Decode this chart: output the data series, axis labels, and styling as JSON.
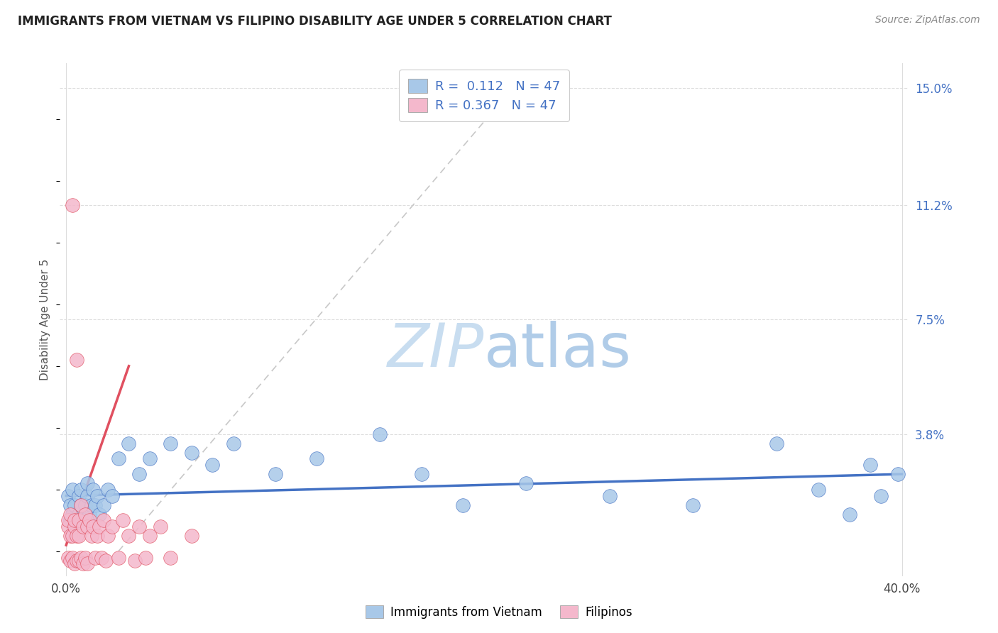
{
  "title": "IMMIGRANTS FROM VIETNAM VS FILIPINO DISABILITY AGE UNDER 5 CORRELATION CHART",
  "source": "Source: ZipAtlas.com",
  "ylabel": "Disability Age Under 5",
  "xlim": [
    -0.003,
    0.403
  ],
  "ylim": [
    -0.008,
    0.158
  ],
  "xtick_pos": [
    0.0,
    0.4
  ],
  "xtick_labels": [
    "0.0%",
    "40.0%"
  ],
  "ytick_pos": [
    0.15,
    0.112,
    0.075,
    0.038
  ],
  "ytick_labels": [
    "15.0%",
    "11.2%",
    "7.5%",
    "3.8%"
  ],
  "r_vietnam": 0.112,
  "n_vietnam": 47,
  "r_filipino": 0.367,
  "n_filipino": 47,
  "color_vietnam": "#A8C8E8",
  "color_filipino": "#F4B8CC",
  "line_color_vietnam": "#4472C4",
  "line_color_filipino": "#E05060",
  "diag_color": "#C8C8C8",
  "watermark_color": "#DCE9F5",
  "background_color": "#FFFFFF",
  "legend_label_vietnam": "Immigrants from Vietnam",
  "legend_label_filipino": "Filipinos",
  "ytick_color": "#4472C4",
  "grid_color": "#DDDDDD",
  "title_color": "#222222",
  "source_color": "#888888",
  "vietnam_x": [
    0.001,
    0.002,
    0.002,
    0.003,
    0.003,
    0.004,
    0.004,
    0.005,
    0.006,
    0.006,
    0.007,
    0.007,
    0.008,
    0.009,
    0.01,
    0.01,
    0.011,
    0.012,
    0.013,
    0.014,
    0.015,
    0.016,
    0.018,
    0.02,
    0.022,
    0.025,
    0.03,
    0.035,
    0.04,
    0.05,
    0.06,
    0.07,
    0.08,
    0.1,
    0.12,
    0.15,
    0.17,
    0.19,
    0.22,
    0.26,
    0.3,
    0.34,
    0.36,
    0.375,
    0.385,
    0.39,
    0.398
  ],
  "vietnam_y": [
    0.018,
    0.01,
    0.015,
    0.012,
    0.02,
    0.008,
    0.015,
    0.01,
    0.012,
    0.018,
    0.015,
    0.02,
    0.01,
    0.015,
    0.018,
    0.022,
    0.012,
    0.015,
    0.02,
    0.015,
    0.018,
    0.012,
    0.015,
    0.02,
    0.018,
    0.03,
    0.035,
    0.025,
    0.03,
    0.035,
    0.032,
    0.028,
    0.035,
    0.025,
    0.03,
    0.038,
    0.025,
    0.015,
    0.022,
    0.018,
    0.015,
    0.035,
    0.02,
    0.012,
    0.028,
    0.018,
    0.025
  ],
  "filipino_x": [
    0.001,
    0.001,
    0.001,
    0.002,
    0.002,
    0.002,
    0.003,
    0.003,
    0.003,
    0.004,
    0.004,
    0.004,
    0.005,
    0.005,
    0.005,
    0.006,
    0.006,
    0.006,
    0.007,
    0.007,
    0.008,
    0.008,
    0.009,
    0.009,
    0.01,
    0.01,
    0.011,
    0.012,
    0.013,
    0.014,
    0.015,
    0.016,
    0.017,
    0.018,
    0.019,
    0.02,
    0.022,
    0.025,
    0.027,
    0.03,
    0.033,
    0.035,
    0.038,
    0.04,
    0.045,
    0.05,
    0.06
  ],
  "filipino_y": [
    0.008,
    0.01,
    -0.002,
    0.005,
    0.012,
    -0.003,
    0.112,
    -0.002,
    0.005,
    0.008,
    -0.004,
    0.01,
    0.062,
    -0.003,
    0.005,
    0.01,
    -0.003,
    0.005,
    0.015,
    -0.002,
    0.008,
    -0.004,
    0.012,
    -0.002,
    0.008,
    -0.004,
    0.01,
    0.005,
    0.008,
    -0.002,
    0.005,
    0.008,
    -0.002,
    0.01,
    -0.003,
    0.005,
    0.008,
    -0.002,
    0.01,
    0.005,
    -0.003,
    0.008,
    -0.002,
    0.005,
    0.008,
    -0.002,
    0.005
  ]
}
